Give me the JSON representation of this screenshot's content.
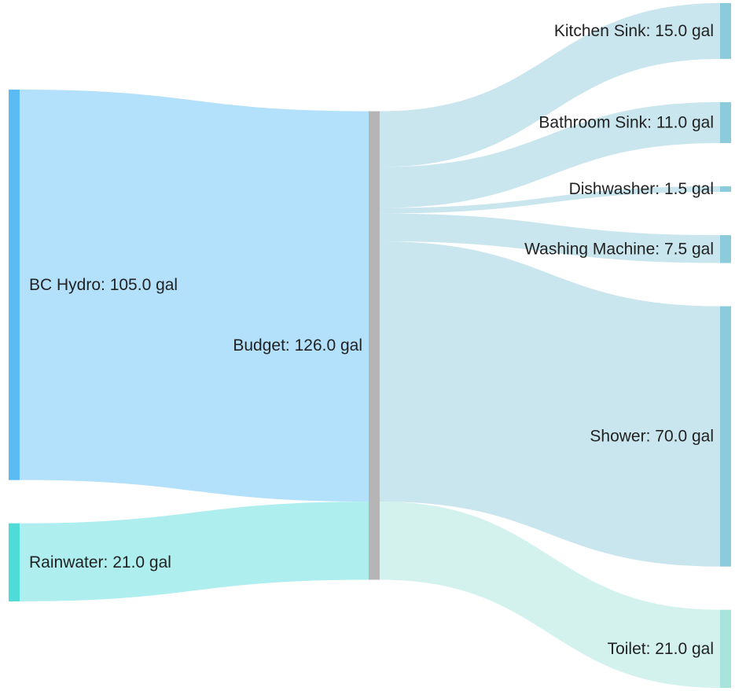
{
  "chart_data": {
    "type": "sankey",
    "unit": "gal",
    "nodes": [
      {
        "id": "bc_hydro",
        "label": "BC Hydro: 105.0 gal",
        "value": 105.0,
        "color": "#5bbcf5"
      },
      {
        "id": "rainwater",
        "label": "Rainwater: 21.0 gal",
        "value": 21.0,
        "color": "#4fdcd8"
      },
      {
        "id": "budget",
        "label": "Budget: 126.0 gal",
        "value": 126.0,
        "color": "#b5b5b5"
      },
      {
        "id": "kitchen_sink",
        "label": "Kitchen Sink: 15.0 gal",
        "value": 15.0,
        "color": "#8ccbdc"
      },
      {
        "id": "bathroom_sink",
        "label": "Bathroom Sink: 11.0 gal",
        "value": 11.0,
        "color": "#8ccbdc"
      },
      {
        "id": "dishwasher",
        "label": "Dishwasher: 1.5 gal",
        "value": 1.5,
        "color": "#8ccbdc"
      },
      {
        "id": "washing_machine",
        "label": "Washing Machine: 7.5 gal",
        "value": 7.5,
        "color": "#8ccbdc"
      },
      {
        "id": "shower",
        "label": "Shower: 70.0 gal",
        "value": 70.0,
        "color": "#8ccbdc"
      },
      {
        "id": "toilet",
        "label": "Toilet: 21.0 gal",
        "value": 21.0,
        "color": "#a8e4dc"
      }
    ],
    "links": [
      {
        "source": "bc_hydro",
        "target": "budget",
        "value": 105.0,
        "color": "#b3e0fb"
      },
      {
        "source": "rainwater",
        "target": "budget",
        "value": 21.0,
        "color": "#aeeeee"
      },
      {
        "source": "budget",
        "target": "kitchen_sink",
        "value": 15.0,
        "color": "#c9e5ee"
      },
      {
        "source": "budget",
        "target": "bathroom_sink",
        "value": 11.0,
        "color": "#c9e5ee"
      },
      {
        "source": "budget",
        "target": "dishwasher",
        "value": 1.5,
        "color": "#c9e5ee"
      },
      {
        "source": "budget",
        "target": "washing_machine",
        "value": 7.5,
        "color": "#c9e5ee"
      },
      {
        "source": "budget",
        "target": "shower",
        "value": 70.0,
        "color": "#c9e5ee"
      },
      {
        "source": "budget",
        "target": "toilet",
        "value": 21.0,
        "color": "#d3f2ee"
      }
    ]
  }
}
